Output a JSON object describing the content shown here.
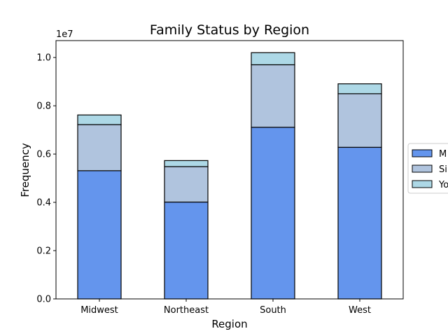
{
  "chart_data": {
    "type": "bar",
    "stacked": true,
    "title": "Family Status by Region",
    "xlabel": "Region",
    "ylabel": "Frequency",
    "offset_text": "1e7",
    "categories": [
      "Midwest",
      "Northeast",
      "South",
      "West"
    ],
    "ylim": [
      0,
      1.07
    ],
    "yticks": [
      "0.0",
      "0.2",
      "0.4",
      "0.6",
      "0.8",
      "1.0"
    ],
    "ytick_values": [
      0,
      0.2,
      0.4,
      0.6,
      0.8,
      1.0
    ],
    "series": [
      {
        "name": "M",
        "color": "#6495ED",
        "values": [
          0.531,
          0.401,
          0.711,
          0.628
        ]
      },
      {
        "name": "Si",
        "color": "#B0C4DE",
        "values": [
          0.191,
          0.147,
          0.259,
          0.222
        ]
      },
      {
        "name": "Yo",
        "color": "#ADD8E6",
        "values": [
          0.04,
          0.025,
          0.05,
          0.041
        ]
      }
    ],
    "legend_position": "center-right",
    "grid": false
  }
}
